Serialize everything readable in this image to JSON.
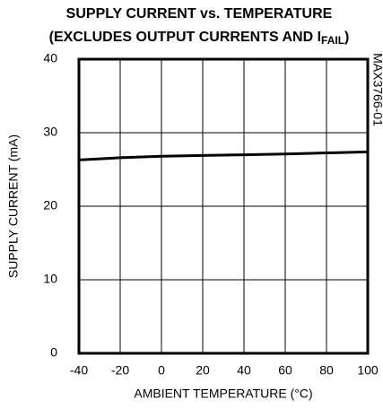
{
  "chart_data": {
    "type": "line",
    "title": "SUPPLY CURRENT vs. TEMPERATURE",
    "subtitle": "(EXCLUDES OUTPUT CURRENTS AND I",
    "subtitle_subscript": "FAIL",
    "subtitle_end": ")",
    "figure_id": "MAX3766-01",
    "x_label": "AMBIENT TEMPERATURE (°C)",
    "y_label": "SUPPLY CURRENT (mA)",
    "x": [
      -40,
      -20,
      0,
      20,
      40,
      60,
      80,
      100
    ],
    "series": [
      {
        "name": "Supply current",
        "color": "#000000",
        "values": [
          26.3,
          26.6,
          26.8,
          26.9,
          27.0,
          27.1,
          27.25,
          27.4
        ]
      }
    ],
    "xlim": [
      -40,
      100
    ],
    "xticks": [
      -40,
      -20,
      0,
      20,
      40,
      60,
      80,
      100
    ],
    "ylim": [
      0,
      40
    ],
    "yticks": [
      0,
      10,
      20,
      30,
      40
    ],
    "grid": true
  }
}
